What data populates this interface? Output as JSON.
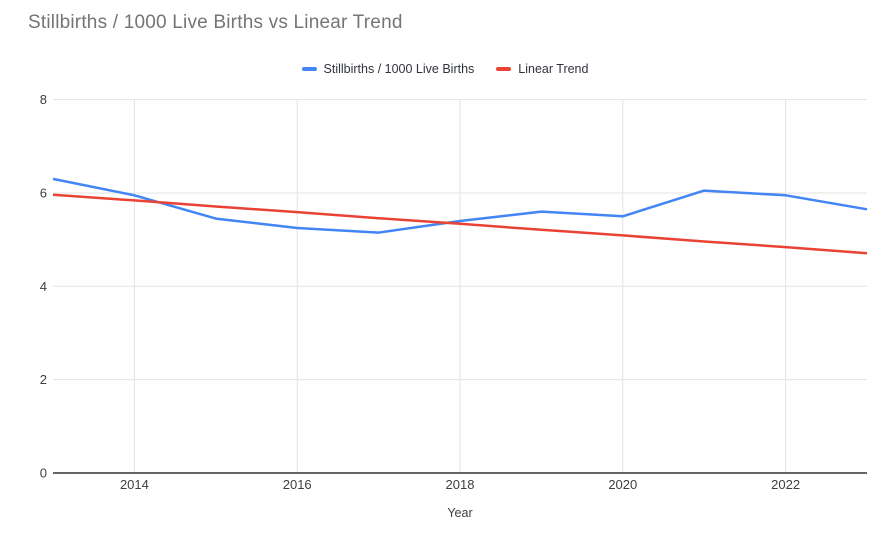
{
  "chart": {
    "title": "Stillbirths / 1000 Live Births vs Linear Trend",
    "title_color": "#757575",
    "legend": [
      {
        "label": "Stillbirths / 1000 Live Births",
        "color": "#4285F4"
      },
      {
        "label": "Linear Trend",
        "color": "#EA4335"
      }
    ],
    "xlabel": "Year"
  },
  "chart_data": {
    "type": "line",
    "title": "Stillbirths / 1000 Live Births vs Linear Trend",
    "xlabel": "Year",
    "ylabel": "",
    "x": [
      2013,
      2014,
      2015,
      2016,
      2017,
      2018,
      2019,
      2020,
      2021,
      2022,
      2023
    ],
    "series": [
      {
        "name": "Stillbirths / 1000 Live Births",
        "color": "#4285F4",
        "values": [
          6.3,
          5.95,
          5.45,
          5.25,
          5.15,
          5.4,
          5.6,
          5.5,
          6.05,
          5.95,
          5.65
        ]
      },
      {
        "name": "Linear Trend",
        "color": "#EA4335",
        "values": [
          5.96,
          5.84,
          5.71,
          5.59,
          5.46,
          5.34,
          5.21,
          5.09,
          4.96,
          4.84,
          4.71
        ]
      }
    ],
    "xlim": [
      2013,
      2023
    ],
    "ylim": [
      0,
      8
    ],
    "y_ticks": [
      0,
      2,
      4,
      6,
      8
    ],
    "x_ticks": [
      2014,
      2016,
      2018,
      2020,
      2022
    ],
    "grid": true,
    "legend_position": "top",
    "gridline_color": "#e3e3e3",
    "axis_line_color": "#333333",
    "tick_label_color": "#3c4043"
  }
}
